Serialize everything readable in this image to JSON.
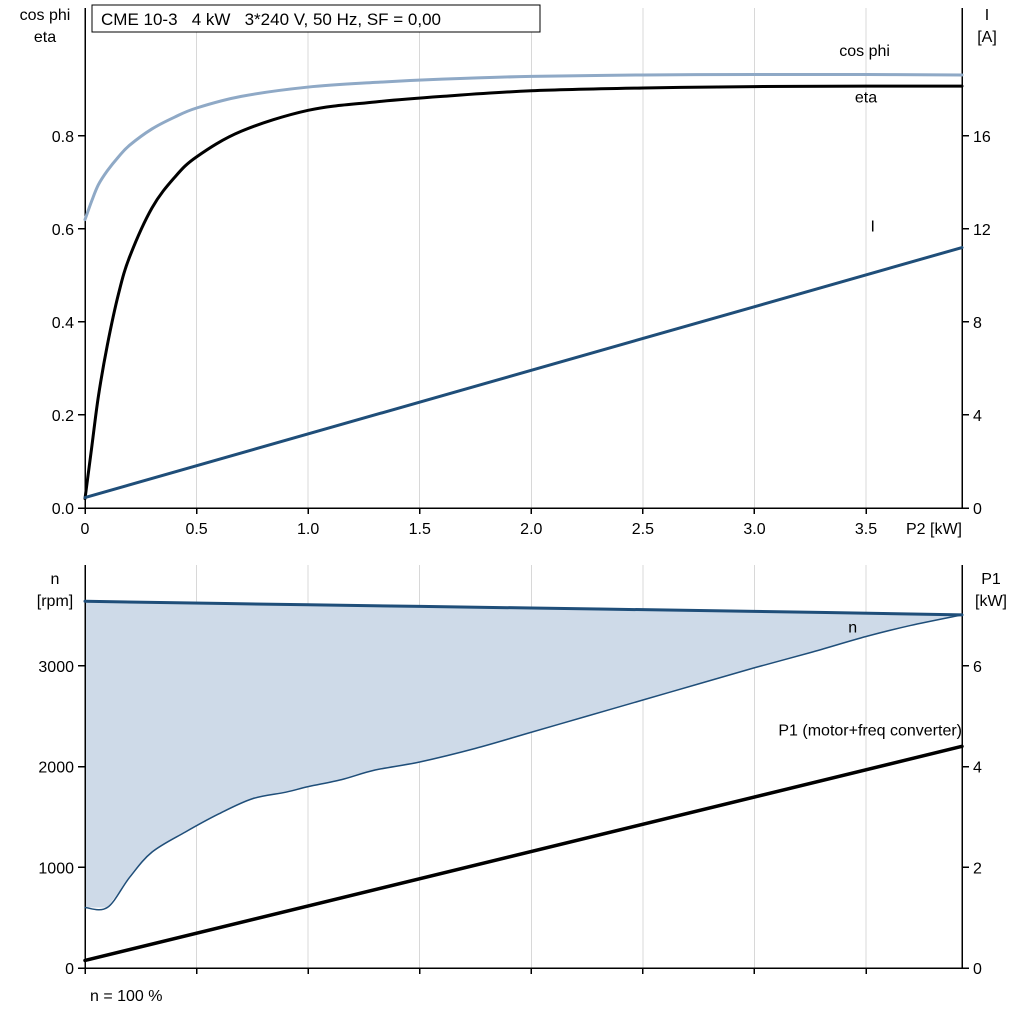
{
  "colors": {
    "grid": "#D8D8D8",
    "axis": "#000000",
    "background": "#FFFFFF",
    "steel_blue": "#8FA9C6",
    "navy": "#1F4E79",
    "band_fill": "#CEDAE8"
  },
  "chart_data": [
    {
      "type": "line",
      "title": "CME 10-3   4 kW   3*240 V, 50 Hz, SF = 0,00",
      "x_axis": {
        "min": 0,
        "max": 3.93,
        "label": "P2 [kW]",
        "ticks": [
          {
            "v": 0,
            "t": "0"
          },
          {
            "v": 0.5,
            "t": "0.5"
          },
          {
            "v": 1,
            "t": "1.0"
          },
          {
            "v": 1.5,
            "t": "1.5"
          },
          {
            "v": 2,
            "t": "2.0"
          },
          {
            "v": 2.5,
            "t": "2.5"
          },
          {
            "v": 3,
            "t": "3.0"
          },
          {
            "v": 3.5,
            "t": "3.5"
          }
        ]
      },
      "left_axis": {
        "title_lines": [
          "cos phi",
          "eta"
        ],
        "min": 0,
        "max": 1.075,
        "ticks": [
          {
            "v": 0,
            "t": "0.0"
          },
          {
            "v": 0.2,
            "t": "0.2"
          },
          {
            "v": 0.4,
            "t": "0.4"
          },
          {
            "v": 0.6,
            "t": "0.6"
          },
          {
            "v": 0.8,
            "t": "0.8"
          }
        ]
      },
      "right_axis": {
        "title_lines": [
          "I",
          "[A]"
        ],
        "min": 0,
        "max": 21.5,
        "ticks": [
          {
            "v": 0,
            "t": "0"
          },
          {
            "v": 4,
            "t": "4"
          },
          {
            "v": 8,
            "t": "8"
          },
          {
            "v": 12,
            "t": "12"
          },
          {
            "v": 16,
            "t": "16"
          }
        ]
      },
      "series": [
        {
          "name": "cos-phi",
          "axis": "left",
          "color": "#8FA9C6",
          "width": 3,
          "x": [
            0,
            0.03,
            0.06,
            0.1,
            0.15,
            0.2,
            0.3,
            0.4,
            0.5,
            0.7,
            1.0,
            1.3,
            1.6,
            2.0,
            2.5,
            3.0,
            3.5,
            3.93
          ],
          "y": [
            0.62,
            0.66,
            0.695,
            0.725,
            0.755,
            0.78,
            0.815,
            0.84,
            0.86,
            0.885,
            0.905,
            0.915,
            0.922,
            0.928,
            0.931,
            0.932,
            0.932,
            0.931
          ],
          "label": {
            "text": "cos phi",
            "x": 3.38,
            "y": 0.972,
            "anchor": "start"
          }
        },
        {
          "name": "eta",
          "axis": "left",
          "color": "#000000",
          "width": 3,
          "x": [
            0,
            0.03,
            0.06,
            0.1,
            0.15,
            0.2,
            0.3,
            0.4,
            0.5,
            0.7,
            1.0,
            1.3,
            1.6,
            2.0,
            2.5,
            3.0,
            3.5,
            3.93
          ],
          "y": [
            0.02,
            0.13,
            0.24,
            0.35,
            0.46,
            0.54,
            0.645,
            0.71,
            0.755,
            0.81,
            0.855,
            0.873,
            0.885,
            0.897,
            0.903,
            0.906,
            0.907,
            0.907
          ],
          "label": {
            "text": "eta",
            "x": 3.45,
            "y": 0.872,
            "anchor": "start"
          }
        },
        {
          "name": "I",
          "axis": "right",
          "color": "#1F4E79",
          "width": 3,
          "x": [
            0,
            3.93
          ],
          "y": [
            0.45,
            11.2
          ],
          "label": {
            "text": "I",
            "x": 3.52,
            "y": 11.9,
            "anchor": "start"
          }
        }
      ]
    },
    {
      "type": "line",
      "footnote": "n = 100 %",
      "x_axis": {
        "min": 0,
        "max": 3.93,
        "label": "",
        "ticks": [
          {
            "v": 0
          },
          {
            "v": 0.5
          },
          {
            "v": 1
          },
          {
            "v": 1.5
          },
          {
            "v": 2
          },
          {
            "v": 2.5
          },
          {
            "v": 3
          },
          {
            "v": 3.5
          }
        ]
      },
      "left_axis": {
        "title_lines": [
          "n",
          "[rpm]"
        ],
        "min": 0,
        "max": 4000,
        "ticks": [
          {
            "v": 0,
            "t": "0"
          },
          {
            "v": 1000,
            "t": "1000"
          },
          {
            "v": 2000,
            "t": "2000"
          },
          {
            "v": 3000,
            "t": "3000"
          }
        ]
      },
      "right_axis": {
        "title_lines": [
          "P1",
          "[kW]"
        ],
        "min": 0,
        "max": 8,
        "ticks": [
          {
            "v": 0,
            "t": "0"
          },
          {
            "v": 2,
            "t": "2"
          },
          {
            "v": 4,
            "t": "4"
          },
          {
            "v": 6,
            "t": "6"
          }
        ]
      },
      "series": [
        {
          "name": "speed-range-lower",
          "axis": "left",
          "color": "#1F4E79",
          "width": 1.5,
          "fill_to": "n",
          "fill": "#CEDAE8",
          "x": [
            0,
            0.1,
            0.2,
            0.3,
            0.45,
            0.6,
            0.75,
            0.9,
            1.0,
            1.15,
            1.3,
            1.5,
            1.75,
            2.0,
            2.25,
            2.5,
            2.75,
            3.0,
            3.25,
            3.5,
            3.7,
            3.93
          ],
          "y": [
            600,
            600,
            900,
            1150,
            1350,
            1530,
            1680,
            1745,
            1800,
            1870,
            1965,
            2045,
            2180,
            2340,
            2500,
            2660,
            2820,
            2980,
            3130,
            3290,
            3400,
            3505
          ]
        },
        {
          "name": "n",
          "axis": "left",
          "color": "#1F4E79",
          "width": 3,
          "x": [
            0,
            1,
            2,
            3,
            3.93
          ],
          "y": [
            3640,
            3605,
            3573,
            3540,
            3505
          ],
          "label": {
            "text": "n",
            "x": 3.42,
            "y": 3330,
            "anchor": "start"
          }
        },
        {
          "name": "P1",
          "axis": "right",
          "color": "#000000",
          "width": 3.5,
          "x": [
            0,
            3.93
          ],
          "y": [
            0.15,
            4.4
          ],
          "label": {
            "text": "P1 (motor+freq converter)",
            "x": 3.93,
            "y": 4.62,
            "anchor": "end"
          }
        }
      ]
    }
  ]
}
